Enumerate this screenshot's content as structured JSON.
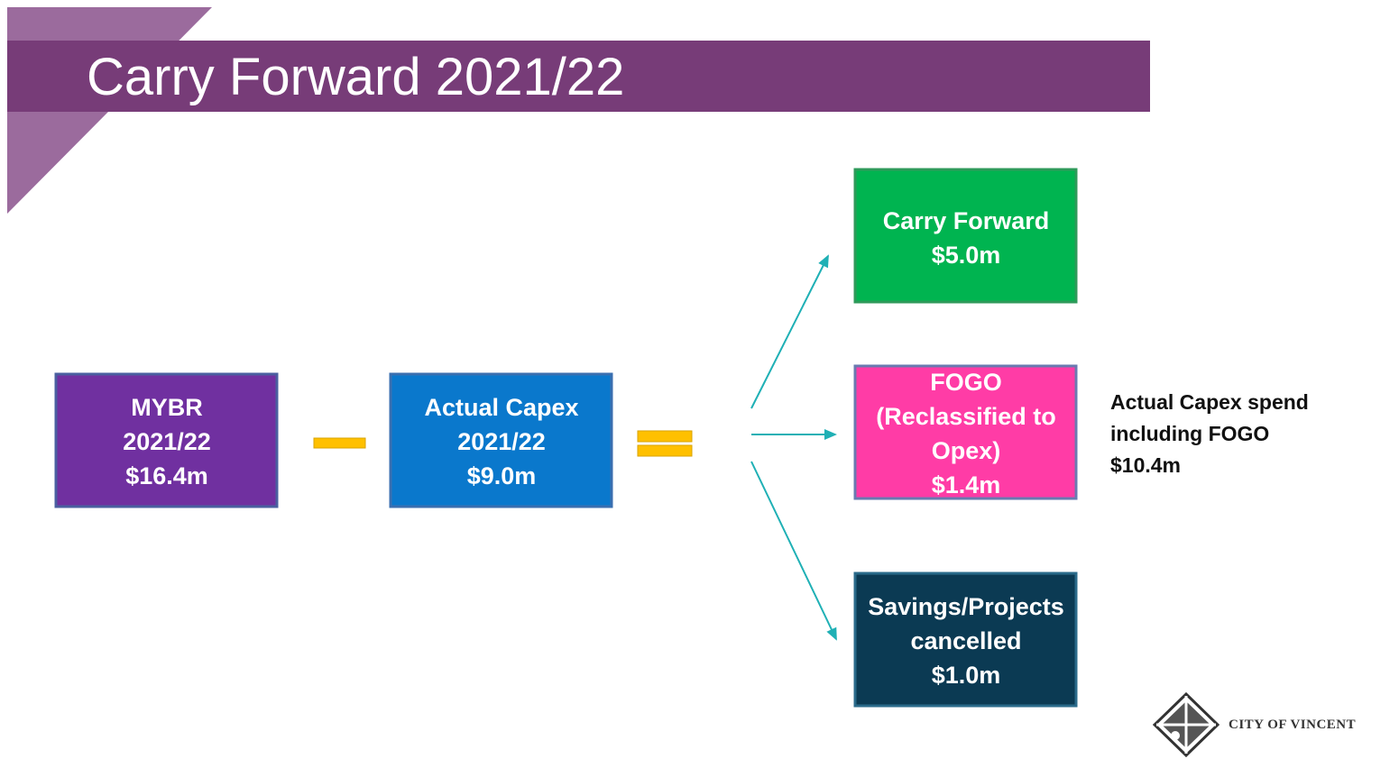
{
  "title": "Carry Forward 2021/22",
  "boxes": [
    {
      "lines": [
        "MYBR",
        "2021/22",
        "$16.4m"
      ]
    },
    {
      "lines": [
        "Actual Capex",
        "2021/22",
        "$9.0m"
      ]
    },
    {
      "lines": [
        "Carry Forward",
        "$5.0m"
      ]
    },
    {
      "lines": [
        "FOGO",
        "(Reclassified to",
        "Opex)",
        "$1.4m"
      ]
    },
    {
      "lines": [
        "Savings/Projects",
        "cancelled",
        "$1.0m"
      ]
    }
  ],
  "note": {
    "lines": [
      "Actual Capex spend",
      "including FOGO",
      "$10.4m"
    ]
  },
  "logo": "CITY OF VINCENT"
}
